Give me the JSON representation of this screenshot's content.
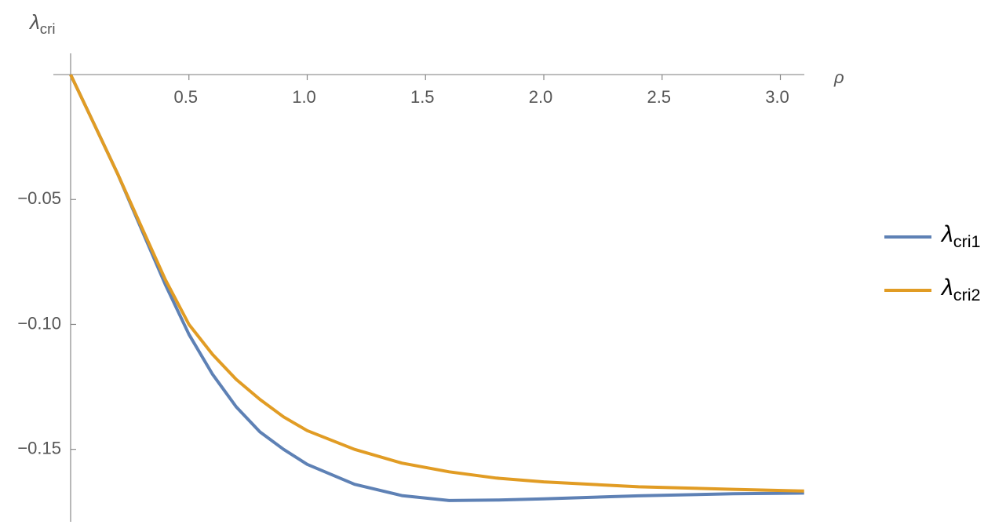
{
  "chart_data": {
    "type": "line",
    "x_label": "ρ",
    "y_label": "λcri",
    "x": [
      0,
      0.1,
      0.2,
      0.3,
      0.4,
      0.5,
      0.6,
      0.7,
      0.8,
      0.9,
      1.0,
      1.2,
      1.4,
      1.6,
      1.8,
      2.0,
      2.4,
      2.8,
      3.1
    ],
    "series": [
      {
        "name": "λcri1",
        "color": "#5e81b5",
        "values": [
          0,
          -0.02,
          -0.04,
          -0.062,
          -0.084,
          -0.104,
          -0.12,
          -0.133,
          -0.143,
          -0.15,
          -0.156,
          -0.164,
          -0.1685,
          -0.1705,
          -0.1703,
          -0.1698,
          -0.1686,
          -0.1678,
          -0.1675
        ]
      },
      {
        "name": "λcri2",
        "color": "#e19c24",
        "values": [
          0,
          -0.02,
          -0.04,
          -0.061,
          -0.082,
          -0.1,
          -0.112,
          -0.122,
          -0.13,
          -0.137,
          -0.1425,
          -0.15,
          -0.1555,
          -0.159,
          -0.1615,
          -0.163,
          -0.165,
          -0.166,
          -0.1667
        ]
      }
    ],
    "xlim": [
      0,
      3.1
    ],
    "ylim": [
      -0.179,
      0.0085
    ],
    "xticks": [
      0.5,
      {
        "value": 1,
        "label": "1.0"
      },
      1.5,
      {
        "value": 2,
        "label": "2.0"
      },
      2.5,
      {
        "value": 3,
        "label": "3.0"
      }
    ],
    "yticks": [
      {
        "value": -0.05,
        "label": "−0.05"
      },
      {
        "value": -0.1,
        "label": "−0.10"
      },
      {
        "value": -0.15,
        "label": "−0.15"
      }
    ],
    "grid": false,
    "legend": "right"
  }
}
